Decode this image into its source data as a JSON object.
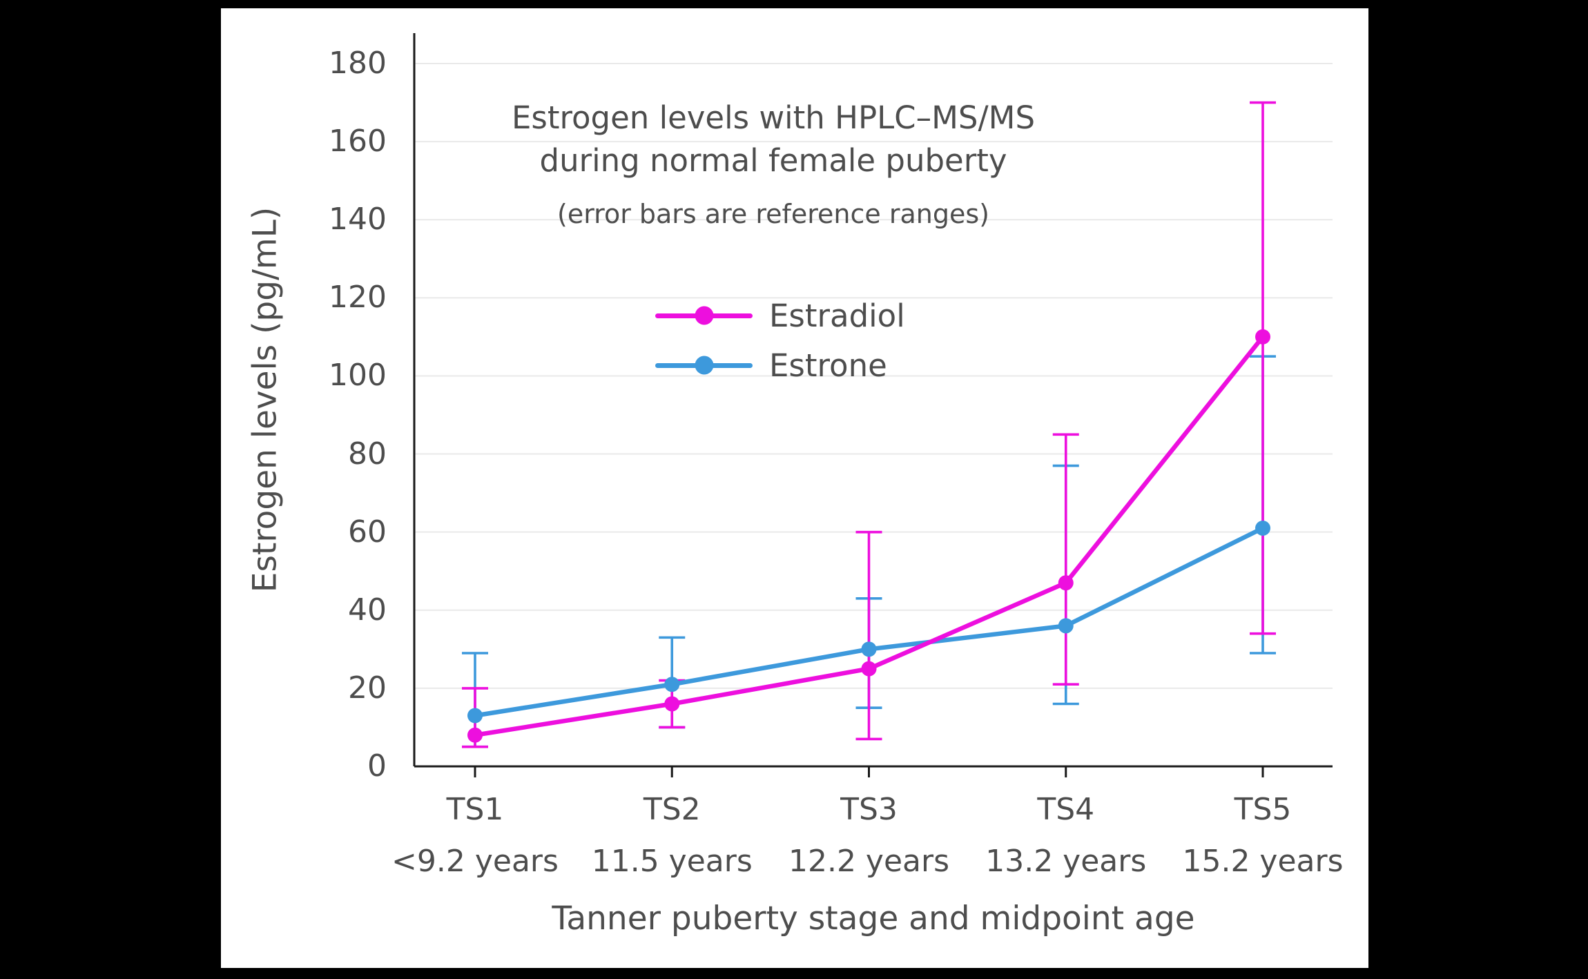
{
  "frame": {
    "background": "#000000",
    "panel_background": "#FFFFFF"
  },
  "chart_data": {
    "type": "line",
    "title": "Estrogen levels with HPLC–MS/MS during normal female puberty",
    "title_lines": [
      "Estrogen levels with HPLC–MS/MS",
      "during normal female puberty"
    ],
    "subtitle": "(error bars are reference ranges)",
    "xlabel": "Tanner puberty stage and midpoint age",
    "ylabel": "Estrogen levels (pg/mL)",
    "categories": [
      "TS1",
      "TS2",
      "TS3",
      "TS4",
      "TS5"
    ],
    "category_sublabels": [
      "<9.2 years",
      "11.5 years",
      "12.2 years",
      "13.2 years",
      "15.2 years"
    ],
    "yticks": [
      0,
      20,
      40,
      60,
      80,
      100,
      120,
      140,
      160,
      180
    ],
    "ylim": [
      0,
      188
    ],
    "grid": true,
    "legend_position": "upper-left-inside",
    "error_bar_meaning": "reference ranges",
    "series": [
      {
        "name": "Estradiol",
        "color": "#ED0FDE",
        "values": [
          8,
          16,
          25,
          47,
          110
        ],
        "range_low": [
          5,
          10,
          7,
          21,
          34
        ],
        "range_high": [
          20,
          22,
          60,
          85,
          170
        ]
      },
      {
        "name": "Estrone",
        "color": "#3D99DC",
        "values": [
          13,
          21,
          30,
          36,
          61
        ],
        "range_low": [
          5,
          10,
          15,
          16,
          29
        ],
        "range_high": [
          29,
          33,
          43,
          77,
          105
        ]
      }
    ],
    "style": {
      "axis_color": "#1A1A1A",
      "grid_color": "#E9E9E9",
      "text_color": "#4D4D4D"
    }
  }
}
